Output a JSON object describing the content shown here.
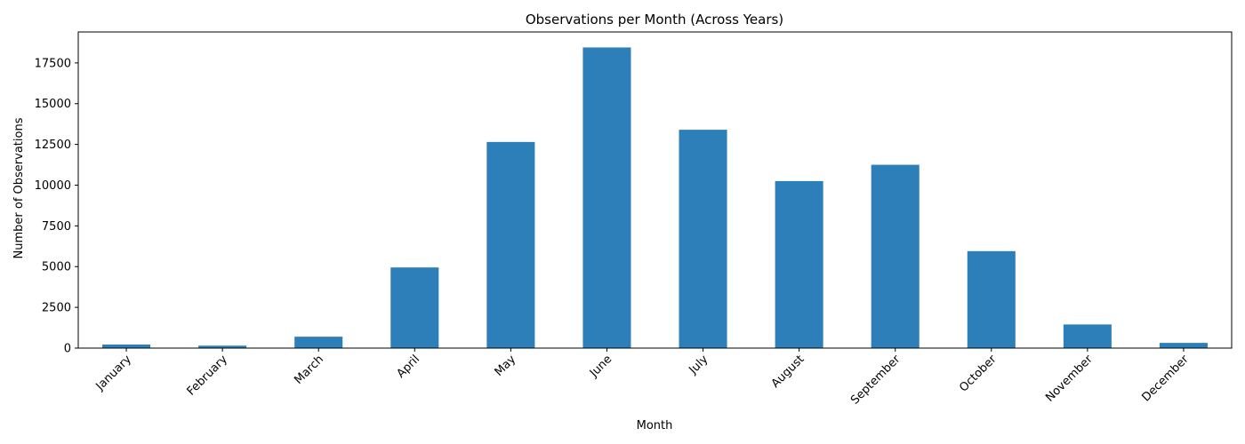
{
  "chart_data": {
    "type": "bar",
    "title": "Observations per Month (Across Years)",
    "xlabel": "Month",
    "ylabel": "Number of Observations",
    "categories": [
      "January",
      "February",
      "March",
      "April",
      "May",
      "June",
      "July",
      "August",
      "September",
      "October",
      "November",
      "December"
    ],
    "values": [
      220,
      150,
      700,
      4950,
      12650,
      18450,
      13400,
      10250,
      11250,
      5950,
      1450,
      320
    ],
    "ylim": [
      0,
      19400
    ],
    "yticks": [
      0,
      2500,
      5000,
      7500,
      10000,
      12500,
      15000,
      17500
    ],
    "ytick_labels": [
      "0",
      "2500",
      "5000",
      "7500",
      "10000",
      "12500",
      "15000",
      "17500"
    ],
    "bar_color": "#2c7fb8",
    "grid": false,
    "legend": "none",
    "xtick_rotation": "45 degrees"
  }
}
